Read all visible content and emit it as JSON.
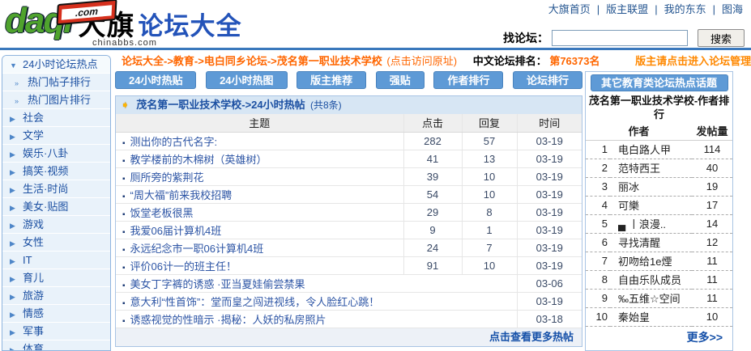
{
  "brand": {
    "daqi": "daqi",
    "dotcom": ".com",
    "cn_bold": "大旗",
    "cn_blue": "论坛大全",
    "sub": "chinabbs.com"
  },
  "top_nav": {
    "links": [
      "大旗首页",
      "版主联盟",
      "我的东东",
      "图海"
    ],
    "separator": "|"
  },
  "search": {
    "label": "找论坛：",
    "value": "",
    "button": "搜索"
  },
  "breadcrumb": {
    "path": "论坛大全->教育->电白同乡论坛->茂名第一职业技术学校",
    "origin_link": "(点击访问原址)",
    "rank_label": "中文论坛排名：",
    "rank_value": "第76373名",
    "admin_link": "版主请点击进入论坛管理"
  },
  "sidebar": {
    "items": [
      {
        "id": "hot24",
        "label": "24小时论坛热点",
        "arrow": "▼",
        "type": "grp"
      },
      {
        "id": "hot-posts",
        "label": "热门帖子排行",
        "arrow": "»",
        "type": "sub"
      },
      {
        "id": "hot-pics",
        "label": "热门图片排行",
        "arrow": "»",
        "type": "sub"
      },
      {
        "id": "society",
        "label": "社会",
        "arrow": "▶",
        "type": ""
      },
      {
        "id": "literature",
        "label": "文学",
        "arrow": "▶",
        "type": ""
      },
      {
        "id": "ent-gossip",
        "label": "娱乐·八卦",
        "arrow": "▶",
        "type": ""
      },
      {
        "id": "funny-video",
        "label": "搞笑·视频",
        "arrow": "▶",
        "type": ""
      },
      {
        "id": "life-style",
        "label": "生活·时尚",
        "arrow": "▶",
        "type": ""
      },
      {
        "id": "beauty-pics",
        "label": "美女·贴图",
        "arrow": "▶",
        "type": ""
      },
      {
        "id": "games",
        "label": "游戏",
        "arrow": "▶",
        "type": ""
      },
      {
        "id": "female",
        "label": "女性",
        "arrow": "▶",
        "type": ""
      },
      {
        "id": "it",
        "label": "IT",
        "arrow": "▶",
        "type": ""
      },
      {
        "id": "parenting",
        "label": "育儿",
        "arrow": "▶",
        "type": ""
      },
      {
        "id": "travel",
        "label": "旅游",
        "arrow": "▶",
        "type": ""
      },
      {
        "id": "emotion",
        "label": "情感",
        "arrow": "▶",
        "type": ""
      },
      {
        "id": "military",
        "label": "军事",
        "arrow": "▶",
        "type": ""
      },
      {
        "id": "sports",
        "label": "体育",
        "arrow": "▶",
        "type": ""
      }
    ]
  },
  "tabs": [
    {
      "id": "hot-posts-24",
      "label": "24小时热贴"
    },
    {
      "id": "hot-pics-24",
      "label": "24小时热图"
    },
    {
      "id": "mod-recommend",
      "label": "版主推荐"
    },
    {
      "id": "strong-posts",
      "label": "强贴"
    },
    {
      "id": "author-rank",
      "label": "作者排行"
    },
    {
      "id": "forum-rank",
      "label": "论坛排行"
    }
  ],
  "main": {
    "section_title": "茂名第一职业技术学校->24小时热帖",
    "section_count": "(共8条)",
    "columns": [
      "主题",
      "点击",
      "回复",
      "时间"
    ],
    "rows": [
      {
        "topic": "测出你的古代名字:",
        "clicks": "282",
        "replies": "57",
        "time": "03-19",
        "wide": false
      },
      {
        "topic": "教学楼前的木棉树（英雄树）",
        "clicks": "41",
        "replies": "13",
        "time": "03-19",
        "wide": false
      },
      {
        "topic": "厕所旁的紫荆花",
        "clicks": "39",
        "replies": "10",
        "time": "03-19",
        "wide": false
      },
      {
        "topic": "“周大福”前来我校招聘",
        "clicks": "54",
        "replies": "10",
        "time": "03-19",
        "wide": false
      },
      {
        "topic": "饭堂老板很黑",
        "clicks": "29",
        "replies": "8",
        "time": "03-19",
        "wide": false
      },
      {
        "topic": "我爱06届计算机4班",
        "clicks": "9",
        "replies": "1",
        "time": "03-19",
        "wide": false
      },
      {
        "topic": "永远纪念市一职06计算机4班",
        "clicks": "24",
        "replies": "7",
        "time": "03-19",
        "wide": false
      },
      {
        "topic": "评价06计一的班主任！",
        "clicks": "91",
        "replies": "10",
        "time": "03-19",
        "wide": false
      },
      {
        "topic": "美女丁字裤的诱惑 ·亚当夏娃偷尝禁果",
        "clicks": "",
        "replies": "",
        "time": "03-06",
        "wide": true
      },
      {
        "topic": "意大利“性首饰”：堂而皇之闯进视线，令人脸红心跳！",
        "clicks": "",
        "replies": "",
        "time": "03-19",
        "wide": true
      },
      {
        "topic": "诱惑视觉的性暗示 ·揭秘：人妖的私房照片",
        "clicks": "",
        "replies": "",
        "time": "03-18",
        "wide": true
      }
    ],
    "more_link": "点击查看更多热帖"
  },
  "right_panel": {
    "button": "其它教育类论坛热点话题",
    "title": "茂名第一职业技术学校-作者排行",
    "columns": [
      "作者",
      "发帖量"
    ],
    "rows": [
      {
        "rank": "1",
        "author": "电白路人甲",
        "posts": "114"
      },
      {
        "rank": "2",
        "author": "范特西王",
        "posts": "40"
      },
      {
        "rank": "3",
        "author": "丽冰",
        "posts": "19"
      },
      {
        "rank": "4",
        "author": "可樂",
        "posts": "17"
      },
      {
        "rank": "5",
        "author": "▄ 丨浪漫..",
        "posts": "14"
      },
      {
        "rank": "6",
        "author": "寻找清醒",
        "posts": "12"
      },
      {
        "rank": "7",
        "author": "初吻给1e煙",
        "posts": "11"
      },
      {
        "rank": "8",
        "author": "自由乐队成员",
        "posts": "11"
      },
      {
        "rank": "9",
        "author": "‰五维☆空间",
        "posts": "11"
      },
      {
        "rank": "10",
        "author": "秦始皇",
        "posts": "10"
      }
    ],
    "more_link": "更多>>"
  },
  "colors": {
    "accent_blue": "#5E9AD6",
    "link_blue": "#1C50A2",
    "topic_link_blue": "#2D55A5",
    "orange": "#FF6600",
    "header_line_blue": "#3A78BC",
    "panel_border_blue": "#A9C4E4",
    "logo_green": "#4FA32D",
    "flag_red": "#D6301D"
  }
}
